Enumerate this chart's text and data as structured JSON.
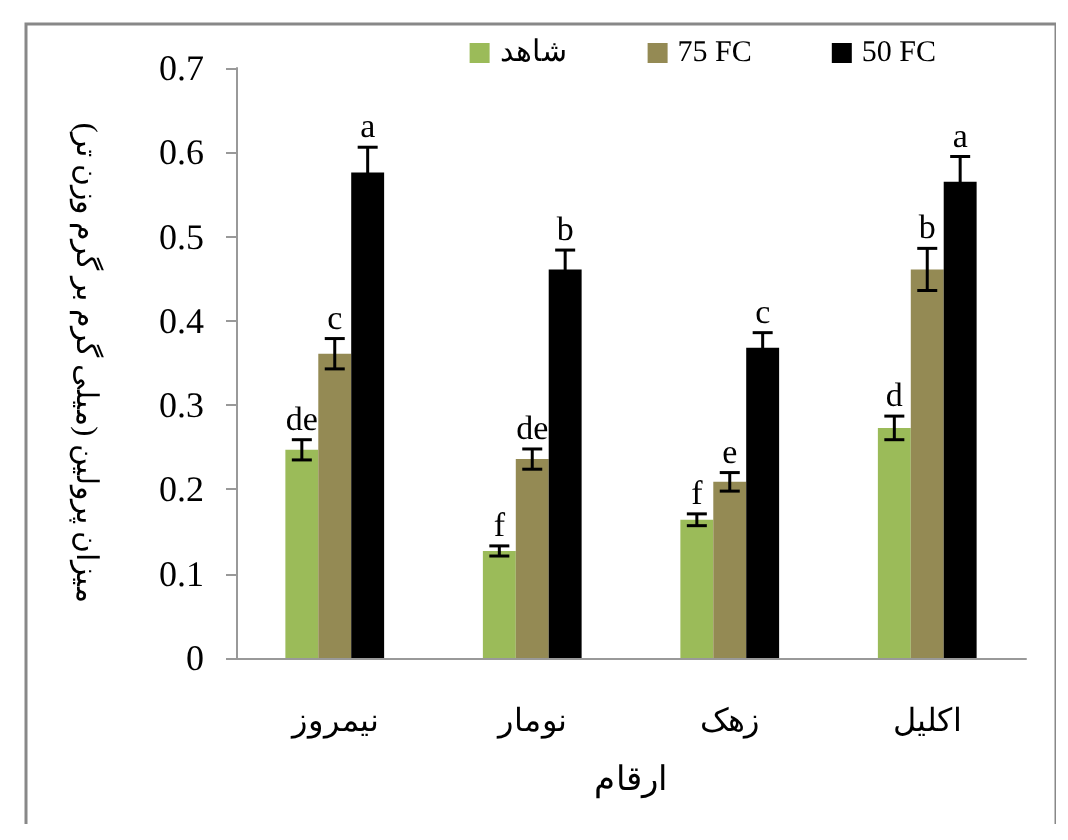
{
  "chart_data": {
    "type": "bar",
    "xlabel": "ارقام",
    "ylabel": "میزان پرولین (میلی گرم بر گرم وزن تر)",
    "categories": [
      "نیمروز",
      "نومار",
      "زهک",
      "اکلیل"
    ],
    "series": [
      {
        "name": "شاهد",
        "color": "#9bbb59",
        "values": [
          0.247,
          0.127,
          0.164,
          0.273
        ],
        "errors": [
          0.012,
          0.006,
          0.007,
          0.014
        ],
        "value_labels": [
          "de",
          "f",
          "f",
          "d"
        ]
      },
      {
        "name": "75 FC",
        "color": "#948a54",
        "values": [
          0.361,
          0.236,
          0.209,
          0.461
        ],
        "errors": [
          0.018,
          0.012,
          0.011,
          0.025
        ],
        "value_labels": [
          "c",
          "de",
          "e",
          "b"
        ]
      },
      {
        "name": "50 FC",
        "color": "#000000",
        "values": [
          0.576,
          0.461,
          0.368,
          0.565
        ],
        "errors": [
          0.03,
          0.023,
          0.018,
          0.03
        ],
        "value_labels": [
          "a",
          "b",
          "c",
          "a"
        ]
      }
    ],
    "ylim": [
      0,
      0.7
    ],
    "yticks": [
      0,
      0.1,
      0.2,
      0.3,
      0.4,
      0.5,
      0.6,
      0.7
    ],
    "grid": false,
    "legend": "top right"
  }
}
